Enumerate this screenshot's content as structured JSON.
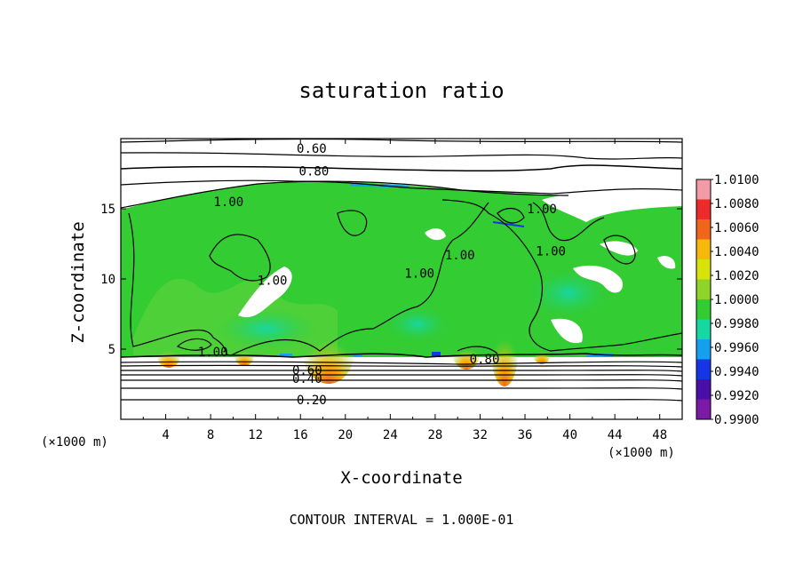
{
  "chart_data": {
    "type": "heatmap",
    "title": "saturation ratio",
    "xlabel": "X-coordinate",
    "ylabel": "Z-coordinate",
    "x_units": "(×1000 m)",
    "x_ticks": [
      "4",
      "8",
      "12",
      "16",
      "20",
      "24",
      "28",
      "32",
      "36",
      "40",
      "44",
      "48"
    ],
    "y_ticks": [
      "5",
      "10",
      "15"
    ],
    "xlim": [
      0,
      50
    ],
    "ylim": [
      0,
      20
    ],
    "footer": "CONTOUR INTERVAL = 1.000E-01",
    "colorbar": {
      "labels": [
        "1.0100",
        "1.0080",
        "1.0060",
        "1.0040",
        "1.0020",
        "1.0000",
        "0.9980",
        "0.9960",
        "0.9940",
        "0.9920",
        "0.9900"
      ],
      "colors": [
        "#f39aa8",
        "#ee2a2a",
        "#f2661a",
        "#f6b80a",
        "#d8e30a",
        "#8fd428",
        "#33cc33",
        "#17d7a2",
        "#14a0ee",
        "#1436e6",
        "#4b0fa8",
        "#7a1aa6"
      ]
    },
    "contour_labels": [
      {
        "text": "0.60",
        "x": 17.0,
        "z": 19.3
      },
      {
        "text": "0.80",
        "x": 17.2,
        "z": 17.7
      },
      {
        "text": "1.00",
        "x": 9.6,
        "z": 15.5
      },
      {
        "text": "1.00",
        "x": 37.5,
        "z": 15.0
      },
      {
        "text": "1.00",
        "x": 13.5,
        "z": 9.9
      },
      {
        "text": "1.00",
        "x": 26.6,
        "z": 10.4
      },
      {
        "text": "1.00",
        "x": 30.2,
        "z": 11.7
      },
      {
        "text": "1.00",
        "x": 38.3,
        "z": 12.0
      },
      {
        "text": "1.00",
        "x": 8.2,
        "z": 4.8
      },
      {
        "text": "0.60",
        "x": 16.6,
        "z": 3.5
      },
      {
        "text": "0.40",
        "x": 16.6,
        "z": 2.9
      },
      {
        "text": "0.20",
        "x": 17.0,
        "z": 1.4
      },
      {
        "text": "0.80",
        "x": 32.4,
        "z": 4.3
      }
    ]
  }
}
